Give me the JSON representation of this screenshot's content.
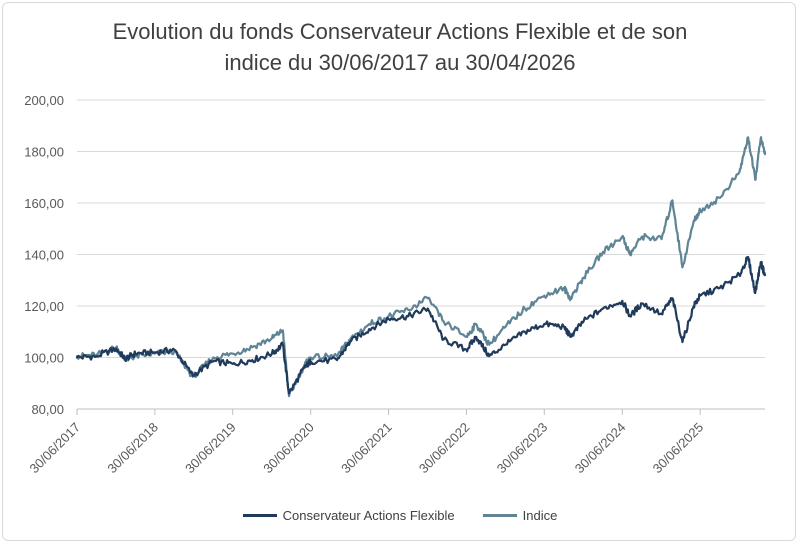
{
  "chart_data": {
    "type": "line",
    "title_line1": "Evolution du fonds Conservateur Actions Flexible et de son",
    "title_line2": "indice du 30/06/2017 au 30/04/2026",
    "xlabel": "",
    "ylabel": "",
    "ylim": [
      80,
      200
    ],
    "yticks": [
      80,
      100,
      120,
      140,
      160,
      180,
      200
    ],
    "ytick_labels": [
      "80,00",
      "100,00",
      "120,00",
      "140,00",
      "160,00",
      "180,00",
      "200,00"
    ],
    "xlim": [
      "2017-06-30",
      "2026-04-30"
    ],
    "xticks": [
      "2017-06-30",
      "2018-06-30",
      "2019-06-30",
      "2020-06-30",
      "2021-06-30",
      "2022-06-30",
      "2023-06-30",
      "2024-06-30",
      "2025-06-30"
    ],
    "xtick_labels": [
      "30/06/2017",
      "30/06/2018",
      "30/06/2019",
      "30/06/2020",
      "30/06/2021",
      "30/06/2022",
      "30/06/2023",
      "30/06/2024",
      "30/06/2025"
    ],
    "grid": "horizontal",
    "legend_position": "bottom",
    "series": [
      {
        "name": "Conservateur Actions Flexible",
        "color": "#1f3a5a",
        "points": [
          [
            "2017-06-30",
            100.0
          ],
          [
            "2017-09-30",
            100.5
          ],
          [
            "2017-12-31",
            103.5
          ],
          [
            "2018-02-10",
            99.5
          ],
          [
            "2018-03-31",
            101.5
          ],
          [
            "2018-06-30",
            102.0
          ],
          [
            "2018-09-30",
            103.0
          ],
          [
            "2018-12-25",
            93.0
          ],
          [
            "2019-03-31",
            98.5
          ],
          [
            "2019-06-30",
            97.5
          ],
          [
            "2019-09-30",
            99.0
          ],
          [
            "2019-12-31",
            101.5
          ],
          [
            "2020-02-20",
            105.0
          ],
          [
            "2020-03-20",
            86.0
          ],
          [
            "2020-05-31",
            96.0
          ],
          [
            "2020-06-30",
            98.5
          ],
          [
            "2020-10-31",
            99.0
          ],
          [
            "2020-12-31",
            106.0
          ],
          [
            "2021-03-31",
            111.0
          ],
          [
            "2021-06-30",
            115.0
          ],
          [
            "2021-09-30",
            116.0
          ],
          [
            "2021-12-31",
            119.0
          ],
          [
            "2022-03-15",
            107.0
          ],
          [
            "2022-06-30",
            103.0
          ],
          [
            "2022-08-15",
            108.0
          ],
          [
            "2022-10-15",
            100.5
          ],
          [
            "2022-12-31",
            105.0
          ],
          [
            "2023-03-31",
            110.0
          ],
          [
            "2023-06-30",
            113.0
          ],
          [
            "2023-09-30",
            112.0
          ],
          [
            "2023-10-31",
            108.0
          ],
          [
            "2023-12-31",
            114.0
          ],
          [
            "2024-03-31",
            119.0
          ],
          [
            "2024-06-30",
            122.0
          ],
          [
            "2024-08-05",
            116.0
          ],
          [
            "2024-09-30",
            121.0
          ],
          [
            "2024-12-31",
            117.0
          ],
          [
            "2025-02-20",
            123.0
          ],
          [
            "2025-04-08",
            106.0
          ],
          [
            "2025-05-31",
            120.0
          ],
          [
            "2025-06-30",
            124.0
          ],
          [
            "2025-09-30",
            127.0
          ],
          [
            "2025-12-31",
            132.0
          ],
          [
            "2026-02-10",
            139.0
          ],
          [
            "2026-03-15",
            125.0
          ],
          [
            "2026-04-10",
            137.0
          ],
          [
            "2026-04-30",
            132.0
          ]
        ]
      },
      {
        "name": "Indice",
        "color": "#5f8495",
        "points": [
          [
            "2017-06-30",
            100.5
          ],
          [
            "2017-09-30",
            101.0
          ],
          [
            "2017-12-31",
            104.0
          ],
          [
            "2018-02-10",
            99.0
          ],
          [
            "2018-03-31",
            100.5
          ],
          [
            "2018-06-30",
            101.5
          ],
          [
            "2018-09-30",
            102.5
          ],
          [
            "2018-12-25",
            92.5
          ],
          [
            "2019-03-31",
            100.0
          ],
          [
            "2019-06-30",
            101.5
          ],
          [
            "2019-09-30",
            104.0
          ],
          [
            "2019-12-31",
            107.5
          ],
          [
            "2020-02-20",
            110.5
          ],
          [
            "2020-03-20",
            85.0
          ],
          [
            "2020-05-31",
            97.0
          ],
          [
            "2020-06-30",
            100.0
          ],
          [
            "2020-10-31",
            100.5
          ],
          [
            "2020-12-31",
            107.0
          ],
          [
            "2021-03-31",
            113.0
          ],
          [
            "2021-06-30",
            116.0
          ],
          [
            "2021-09-30",
            118.5
          ],
          [
            "2021-12-31",
            123.0
          ],
          [
            "2022-03-15",
            114.0
          ],
          [
            "2022-06-30",
            108.0
          ],
          [
            "2022-08-15",
            113.0
          ],
          [
            "2022-10-15",
            105.0
          ],
          [
            "2022-12-31",
            112.0
          ],
          [
            "2023-03-31",
            119.0
          ],
          [
            "2023-06-30",
            124.0
          ],
          [
            "2023-09-30",
            127.0
          ],
          [
            "2023-10-31",
            123.0
          ],
          [
            "2023-12-31",
            131.0
          ],
          [
            "2024-03-31",
            141.0
          ],
          [
            "2024-06-30",
            147.0
          ],
          [
            "2024-08-05",
            140.0
          ],
          [
            "2024-09-30",
            147.0
          ],
          [
            "2024-12-31",
            146.0
          ],
          [
            "2025-02-20",
            161.0
          ],
          [
            "2025-04-08",
            135.0
          ],
          [
            "2025-05-31",
            153.0
          ],
          [
            "2025-06-30",
            157.0
          ],
          [
            "2025-09-30",
            162.0
          ],
          [
            "2025-12-31",
            172.0
          ],
          [
            "2026-02-10",
            185.5
          ],
          [
            "2026-03-15",
            169.0
          ],
          [
            "2026-04-10",
            185.0
          ],
          [
            "2026-04-30",
            179.0
          ]
        ]
      }
    ]
  }
}
